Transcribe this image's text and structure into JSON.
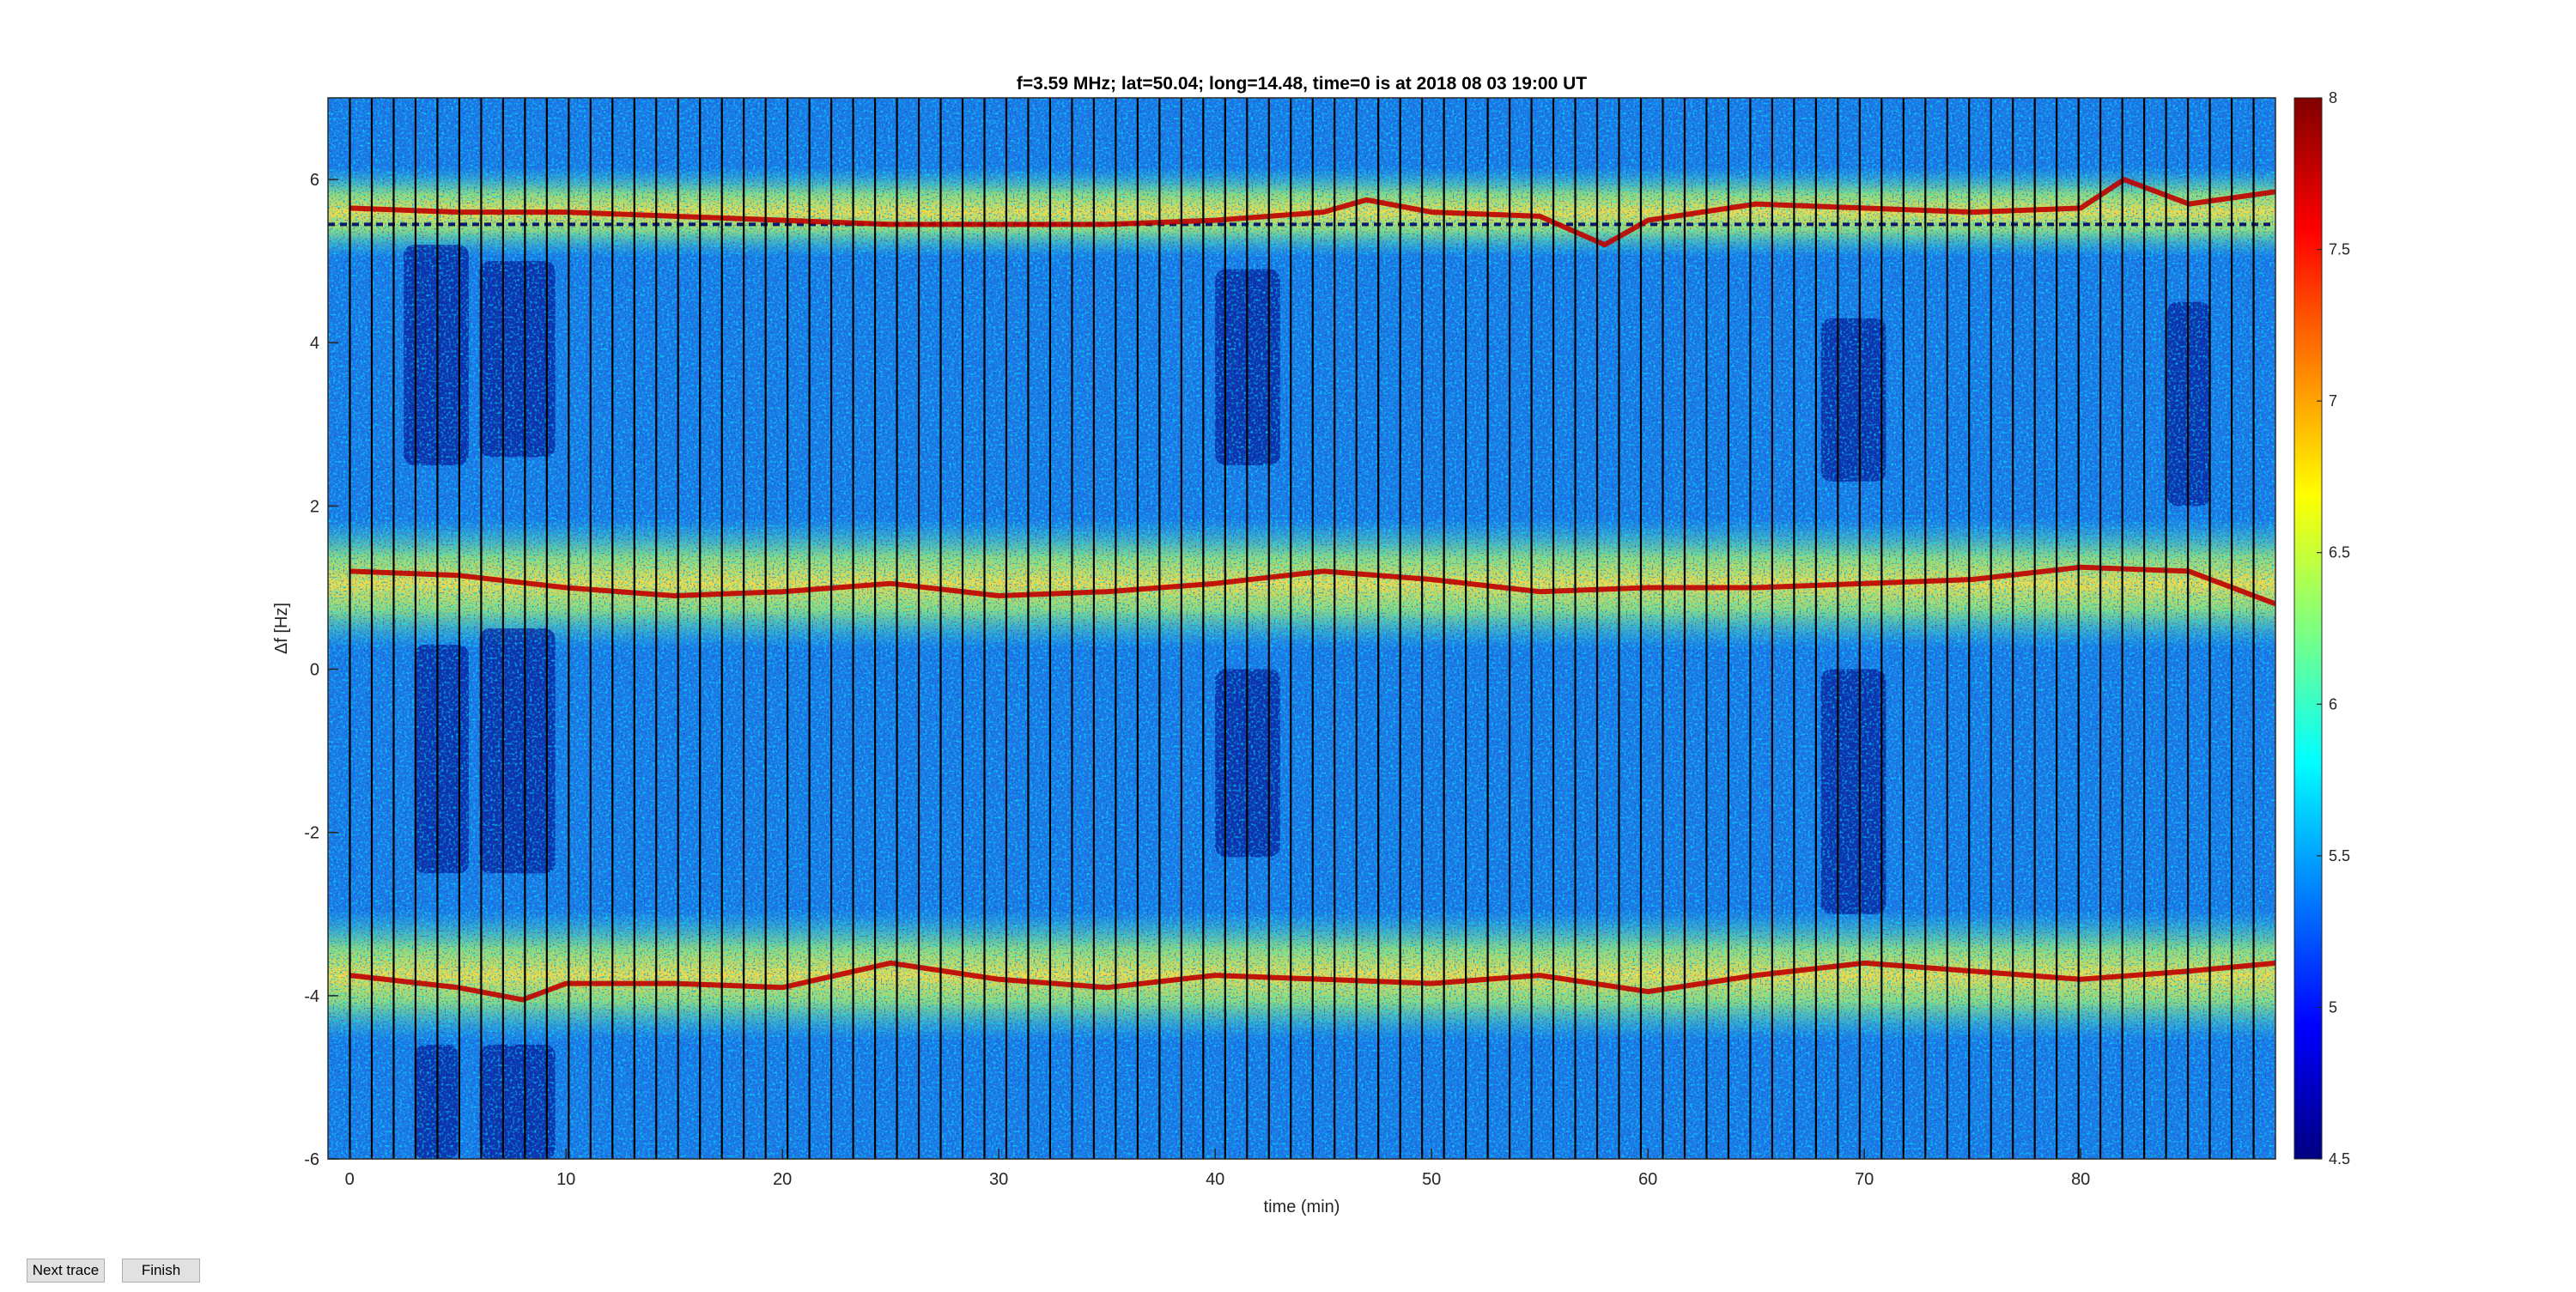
{
  "window": {
    "buttons": {
      "next_trace": "Next trace",
      "finish": "Finish"
    }
  },
  "colors": {
    "colormap": "jet",
    "spectrogram_background": "#1e78e6",
    "trace_line": "#c00000",
    "marker_line": "#000000",
    "trace_divider": "#000000"
  },
  "chart_data": {
    "type": "heatmap",
    "title": "f=3.59 MHz;  lat=50.04; long=14.48, time=0 is at 2018 08 03 19:00 UT",
    "xlabel": "time (min)",
    "ylabel": "Δf [Hz]",
    "xlim": [
      -1,
      89
    ],
    "ylim": [
      -6,
      7
    ],
    "xticks": [
      0,
      10,
      20,
      30,
      40,
      50,
      60,
      70,
      80
    ],
    "yticks": [
      -6,
      -4,
      -2,
      0,
      2,
      4,
      6
    ],
    "colorbar": {
      "min": 4.5,
      "max": 8,
      "ticks": [
        4.5,
        5,
        5.5,
        6,
        6.5,
        7,
        7.5,
        8
      ]
    },
    "grid": false,
    "vertical_trace_dividers_count": 88,
    "dashed_reference_line_y": 5.45,
    "series": [
      {
        "x": [
          0,
          5,
          10,
          15,
          20,
          25,
          30,
          35,
          40,
          45,
          47,
          50,
          55,
          58,
          60,
          65,
          70,
          75,
          80,
          82,
          85,
          89
        ],
        "y": [
          5.65,
          5.6,
          5.6,
          5.55,
          5.5,
          5.45,
          5.45,
          5.45,
          5.5,
          5.6,
          5.75,
          5.6,
          5.55,
          5.2,
          5.5,
          5.7,
          5.65,
          5.6,
          5.65,
          6.0,
          5.7,
          5.85
        ]
      },
      {
        "x": [
          0,
          5,
          10,
          15,
          20,
          25,
          30,
          35,
          40,
          45,
          50,
          55,
          60,
          65,
          70,
          75,
          80,
          85,
          89
        ],
        "y": [
          1.2,
          1.15,
          1.0,
          0.9,
          0.95,
          1.05,
          0.9,
          0.95,
          1.05,
          1.2,
          1.1,
          0.95,
          1.0,
          1.0,
          1.05,
          1.1,
          1.25,
          1.2,
          0.8
        ]
      },
      {
        "x": [
          0,
          5,
          8,
          10,
          15,
          20,
          25,
          30,
          35,
          40,
          45,
          50,
          55,
          60,
          65,
          70,
          75,
          80,
          85,
          89
        ],
        "y": [
          -3.75,
          -3.9,
          -4.05,
          -3.85,
          -3.85,
          -3.9,
          -3.6,
          -3.8,
          -3.9,
          -3.75,
          -3.8,
          -3.85,
          -3.75,
          -3.95,
          -3.75,
          -3.6,
          -3.7,
          -3.8,
          -3.7,
          -3.6
        ]
      }
    ],
    "background_high_bands": [
      {
        "y_center": 5.6,
        "half_width": 0.55
      },
      {
        "y_center": 1.05,
        "half_width": 0.8
      },
      {
        "y_center": -3.75,
        "half_width": 0.8
      }
    ],
    "low_intensity_regions": [
      {
        "x": [
          2.5,
          5.5
        ],
        "y": [
          2.5,
          5.2
        ]
      },
      {
        "x": [
          6,
          9.5
        ],
        "y": [
          2.6,
          5.0
        ]
      },
      {
        "x": [
          3,
          5.5
        ],
        "y": [
          -2.5,
          0.3
        ]
      },
      {
        "x": [
          6,
          9.5
        ],
        "y": [
          -2.5,
          0.5
        ]
      },
      {
        "x": [
          6,
          9.5
        ],
        "y": [
          -6,
          -4.6
        ]
      },
      {
        "x": [
          3,
          5
        ],
        "y": [
          -6,
          -4.6
        ]
      },
      {
        "x": [
          40,
          43
        ],
        "y": [
          2.5,
          4.9
        ]
      },
      {
        "x": [
          40,
          43
        ],
        "y": [
          -2.3,
          0.0
        ]
      },
      {
        "x": [
          68,
          71
        ],
        "y": [
          2.3,
          4.3
        ]
      },
      {
        "x": [
          68,
          71
        ],
        "y": [
          -3.0,
          0.0
        ]
      },
      {
        "x": [
          84,
          86
        ],
        "y": [
          2.0,
          4.5
        ]
      }
    ]
  }
}
